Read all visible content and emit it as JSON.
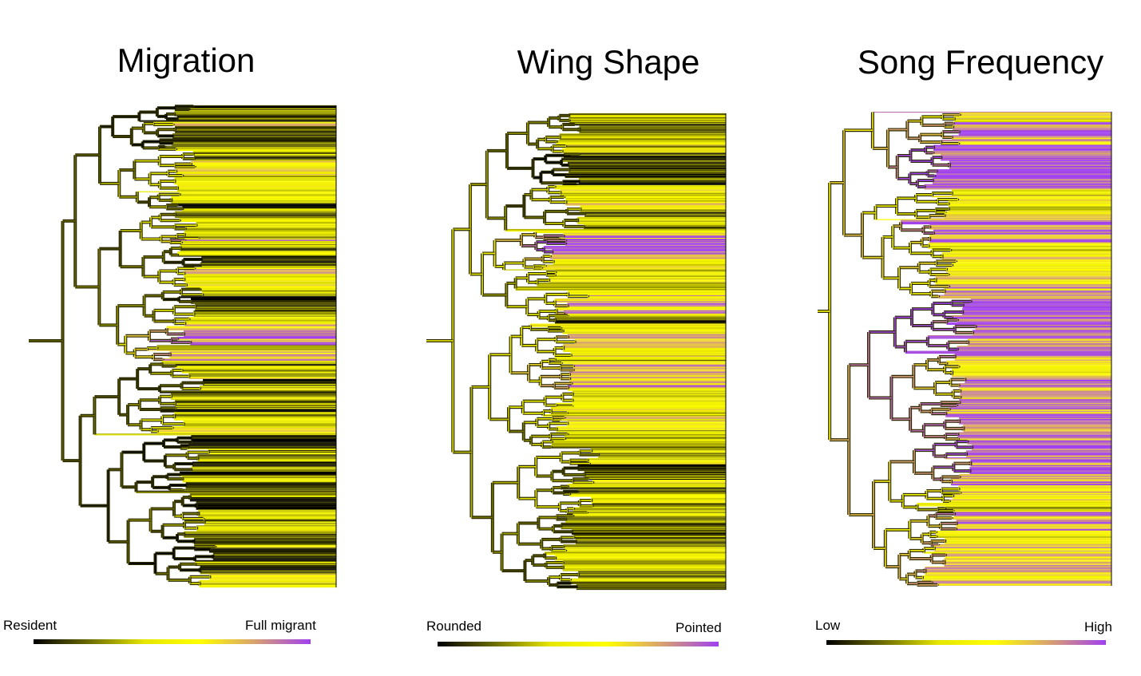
{
  "panels": [
    {
      "title": "Migration",
      "trait": "migration",
      "scale": {
        "low_label": "Resident",
        "high_label": "Full migrant"
      }
    },
    {
      "title": "Wing Shape",
      "trait": "wing-shape",
      "scale": {
        "low_label": "Rounded",
        "high_label": "Pointed"
      }
    },
    {
      "title": "Song Frequency",
      "trait": "song-frequency",
      "scale": {
        "low_label": "Low",
        "high_label": "High"
      }
    }
  ],
  "colors": {
    "low": "#000000",
    "mid": "#ffff00",
    "high": "#a040f0",
    "gradient": [
      "#000000",
      "#6b6b00",
      "#e6e600",
      "#ffff00",
      "#d8a070",
      "#a040f0"
    ]
  }
}
